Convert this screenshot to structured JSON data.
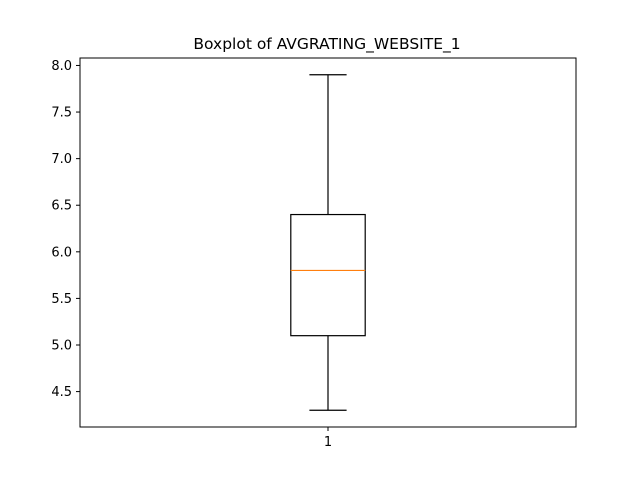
{
  "chart_data": {
    "type": "boxplot",
    "title": "Boxplot of AVGRATING_WEBSITE_1",
    "xlabel": "",
    "ylabel": "",
    "categories": [
      "1"
    ],
    "boxes": [
      {
        "category": "1",
        "whisker_low": 4.3,
        "q1": 5.1,
        "median": 5.8,
        "q3": 6.4,
        "whisker_high": 7.9
      }
    ],
    "ylim": [
      4.12,
      8.08
    ],
    "yticks": [
      4.5,
      5.0,
      5.5,
      6.0,
      6.5,
      7.0,
      7.5,
      8.0
    ],
    "ytick_labels": [
      "4.5",
      "5.0",
      "5.5",
      "6.0",
      "6.5",
      "7.0",
      "7.5",
      "8.0"
    ],
    "grid": false,
    "colors": {
      "box": "#000000",
      "median": "#ff7f0e",
      "whisker": "#000000"
    }
  }
}
